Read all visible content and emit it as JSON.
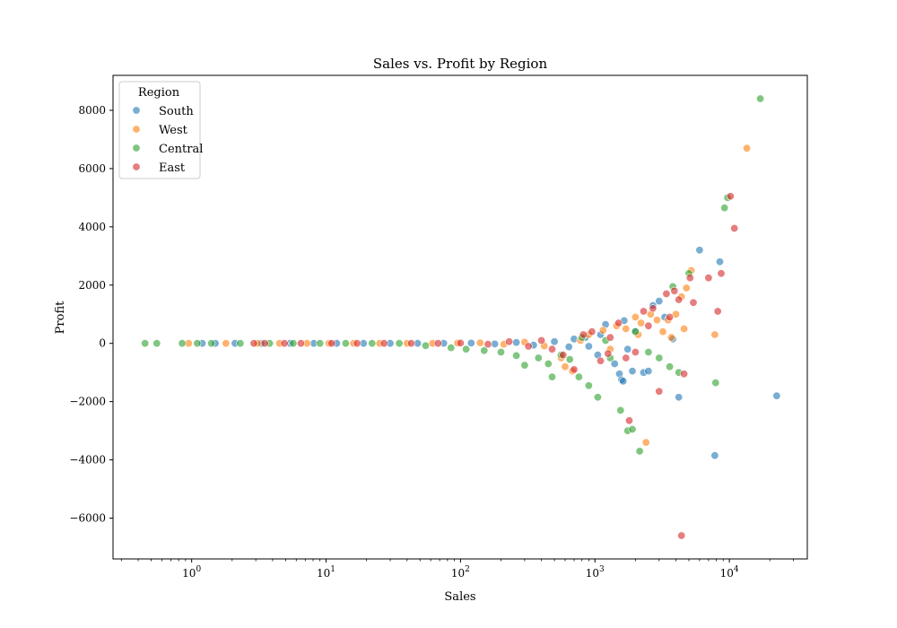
{
  "chart_data": {
    "type": "scatter",
    "title": "Sales vs. Profit by Region",
    "xlabel": "Sales",
    "ylabel": "Profit",
    "xscale": "log",
    "xlim": [
      0.26,
      38000
    ],
    "ylim": [
      -7400,
      9200
    ],
    "grid": false,
    "yticks": [
      -6000,
      -4000,
      -2000,
      0,
      2000,
      4000,
      6000,
      8000
    ],
    "ytick_labels": [
      "−6000",
      "−4000",
      "−2000",
      "0",
      "2000",
      "4000",
      "6000",
      "8000"
    ],
    "xticks": [
      1,
      10,
      100,
      1000,
      10000
    ],
    "xtick_labels": [
      {
        "base": "10",
        "exp": "0"
      },
      {
        "base": "10",
        "exp": "1"
      },
      {
        "base": "10",
        "exp": "2"
      },
      {
        "base": "10",
        "exp": "3"
      },
      {
        "base": "10",
        "exp": "4"
      }
    ],
    "legend": {
      "title": "Region",
      "location": "upper-left"
    },
    "series": [
      {
        "name": "South",
        "color": "#1f77b4",
        "points": [
          [
            1.2,
            0
          ],
          [
            1.5,
            0
          ],
          [
            2.1,
            0
          ],
          [
            3.3,
            0
          ],
          [
            5.4,
            0
          ],
          [
            8.1,
            0
          ],
          [
            12,
            0
          ],
          [
            19,
            0
          ],
          [
            30,
            0
          ],
          [
            48,
            0
          ],
          [
            75,
            5
          ],
          [
            120,
            10
          ],
          [
            180,
            -20
          ],
          [
            260,
            30
          ],
          [
            350,
            -60
          ],
          [
            500,
            60
          ],
          [
            640,
            -120
          ],
          [
            850,
            200
          ],
          [
            1050,
            -400
          ],
          [
            1200,
            650
          ],
          [
            1400,
            -700
          ],
          [
            1520,
            -1050
          ],
          [
            1580,
            -1250
          ],
          [
            1620,
            -1300
          ],
          [
            1650,
            780
          ],
          [
            1900,
            -950
          ],
          [
            2000,
            420
          ],
          [
            2300,
            -1000
          ],
          [
            2500,
            -950
          ],
          [
            2700,
            1300
          ],
          [
            3000,
            1450
          ],
          [
            3300,
            900
          ],
          [
            3800,
            150
          ],
          [
            4200,
            -1850
          ],
          [
            6000,
            3200
          ],
          [
            7800,
            -3850
          ],
          [
            8500,
            2800
          ],
          [
            22500,
            -1800
          ],
          [
            900,
            -100
          ],
          [
            700,
            150
          ],
          [
            1100,
            300
          ],
          [
            1750,
            -200
          ]
        ]
      },
      {
        "name": "West",
        "color": "#ff7f0e",
        "points": [
          [
            0.95,
            0
          ],
          [
            1.8,
            0
          ],
          [
            3.1,
            0
          ],
          [
            4.5,
            0
          ],
          [
            7.2,
            0
          ],
          [
            10.5,
            0
          ],
          [
            16,
            0
          ],
          [
            25,
            0
          ],
          [
            40,
            0
          ],
          [
            62,
            0
          ],
          [
            95,
            10
          ],
          [
            140,
            20
          ],
          [
            210,
            -30
          ],
          [
            300,
            40
          ],
          [
            420,
            -90
          ],
          [
            560,
            -500
          ],
          [
            600,
            -800
          ],
          [
            680,
            -950
          ],
          [
            780,
            100
          ],
          [
            900,
            300
          ],
          [
            1150,
            450
          ],
          [
            1450,
            600
          ],
          [
            1700,
            500
          ],
          [
            2000,
            900
          ],
          [
            2200,
            700
          ],
          [
            2400,
            -3400
          ],
          [
            2600,
            1000
          ],
          [
            2900,
            800
          ],
          [
            3200,
            400
          ],
          [
            3500,
            800
          ],
          [
            4000,
            1000
          ],
          [
            4400,
            1600
          ],
          [
            4600,
            500
          ],
          [
            4800,
            1900
          ],
          [
            5200,
            2500
          ],
          [
            7800,
            300
          ],
          [
            13500,
            6700
          ],
          [
            1300,
            -200
          ],
          [
            3700,
            200
          ],
          [
            2100,
            300
          ]
        ]
      },
      {
        "name": "Central",
        "color": "#2ca02c",
        "points": [
          [
            0.45,
            0
          ],
          [
            0.55,
            0
          ],
          [
            0.85,
            0
          ],
          [
            1.1,
            0
          ],
          [
            1.4,
            0
          ],
          [
            2.3,
            0
          ],
          [
            3.8,
            0
          ],
          [
            5.7,
            0
          ],
          [
            9,
            0
          ],
          [
            14,
            0
          ],
          [
            22,
            0
          ],
          [
            35,
            0
          ],
          [
            55,
            -80
          ],
          [
            85,
            -150
          ],
          [
            110,
            -200
          ],
          [
            150,
            -250
          ],
          [
            200,
            -300
          ],
          [
            260,
            -420
          ],
          [
            300,
            -750
          ],
          [
            380,
            -500
          ],
          [
            450,
            -700
          ],
          [
            480,
            -1150
          ],
          [
            560,
            -400
          ],
          [
            650,
            -550
          ],
          [
            760,
            -1150
          ],
          [
            900,
            -1450
          ],
          [
            1050,
            -1850
          ],
          [
            1300,
            -500
          ],
          [
            1550,
            -2300
          ],
          [
            1750,
            -3000
          ],
          [
            1900,
            -2950
          ],
          [
            2150,
            -3700
          ],
          [
            2500,
            -300
          ],
          [
            3000,
            -500
          ],
          [
            3600,
            -800
          ],
          [
            3800,
            1950
          ],
          [
            4200,
            -1000
          ],
          [
            5000,
            2400
          ],
          [
            7900,
            -1350
          ],
          [
            9200,
            4650
          ],
          [
            9700,
            5000
          ],
          [
            17000,
            8400
          ],
          [
            800,
            200
          ],
          [
            1200,
            100
          ],
          [
            2000,
            400
          ]
        ]
      },
      {
        "name": "East",
        "color": "#d62728",
        "points": [
          [
            2.9,
            0
          ],
          [
            3.5,
            0
          ],
          [
            4.9,
            0
          ],
          [
            6.5,
            0
          ],
          [
            11,
            0
          ],
          [
            17,
            0
          ],
          [
            27,
            0
          ],
          [
            43,
            0
          ],
          [
            68,
            0
          ],
          [
            100,
            10
          ],
          [
            160,
            -30
          ],
          [
            230,
            60
          ],
          [
            320,
            -100
          ],
          [
            400,
            100
          ],
          [
            480,
            -200
          ],
          [
            580,
            -400
          ],
          [
            700,
            -900
          ],
          [
            820,
            300
          ],
          [
            950,
            400
          ],
          [
            1100,
            -600
          ],
          [
            1300,
            200
          ],
          [
            1500,
            700
          ],
          [
            1700,
            -500
          ],
          [
            1800,
            -2650
          ],
          [
            2000,
            -300
          ],
          [
            2300,
            1100
          ],
          [
            2700,
            1200
          ],
          [
            3000,
            -1650
          ],
          [
            3400,
            1700
          ],
          [
            3900,
            1800
          ],
          [
            4200,
            1500
          ],
          [
            4400,
            -6600
          ],
          [
            4600,
            -1050
          ],
          [
            5100,
            2250
          ],
          [
            5400,
            1400
          ],
          [
            7000,
            2250
          ],
          [
            8200,
            1100
          ],
          [
            8700,
            2400
          ],
          [
            10200,
            5050
          ],
          [
            10900,
            3950
          ],
          [
            1250,
            -350
          ],
          [
            2500,
            600
          ],
          [
            3600,
            900
          ]
        ]
      }
    ]
  }
}
